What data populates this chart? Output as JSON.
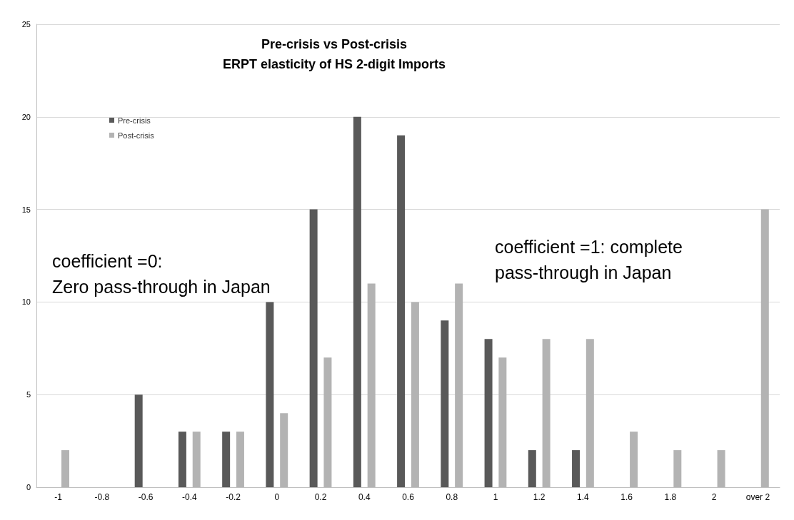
{
  "chart_data": {
    "type": "bar",
    "title": "Pre-crisis vs Post-crisis",
    "subtitle": "ERPT elasticity of HS 2-digit Imports",
    "categories": [
      "-1",
      "-0.8",
      "-0.6",
      "-0.4",
      "-0.2",
      "0",
      "0.2",
      "0.4",
      "0.6",
      "0.8",
      "1",
      "1.2",
      "1.4",
      "1.6",
      "1.8",
      "2",
      "over 2"
    ],
    "series": [
      {
        "name": "Pre-crisis",
        "color": "#595959",
        "values": [
          0,
          0,
          5,
          3,
          3,
          10,
          15,
          20,
          19,
          9,
          8,
          2,
          2,
          0,
          0,
          0,
          0
        ]
      },
      {
        "name": "Post-crisis",
        "color": "#b3b3b3",
        "values": [
          2,
          0,
          0,
          3,
          3,
          4,
          7,
          11,
          10,
          11,
          7,
          8,
          8,
          3,
          2,
          2,
          15
        ]
      }
    ],
    "ylim": [
      0,
      25
    ],
    "yticks": [
      0,
      5,
      10,
      15,
      20,
      25
    ],
    "grid": "y",
    "legend": "top left",
    "annotations": [
      "coefficient =0:\nZero pass-through in Japan",
      "coefficient =1: complete\npass-through in Japan"
    ]
  }
}
